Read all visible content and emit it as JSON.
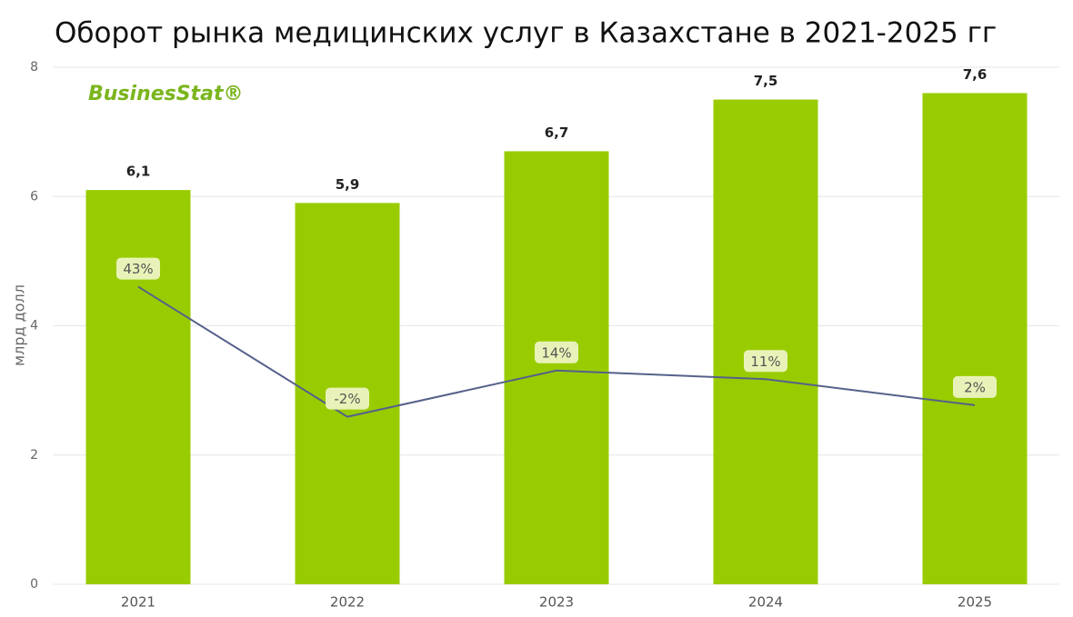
{
  "chart_data": {
    "type": "bar",
    "title": "Оборот рынка медицинских услуг в Казахстане в 2021-2025 гг",
    "logo": "BusinesStat®",
    "y_label": "млрд долл",
    "categories": [
      "2021",
      "2022",
      "2023",
      "2024",
      "2025"
    ],
    "series": [
      {
        "type": "bar",
        "color": "#99cc00",
        "values": [
          6.1,
          5.9,
          6.7,
          7.5,
          7.6
        ],
        "value_labels": [
          "6,1",
          "5,9",
          "6,7",
          "7,5",
          "7,6"
        ]
      },
      {
        "type": "line",
        "axis": "y2",
        "color": "#56618a",
        "values": [
          43,
          -2,
          14,
          11,
          2
        ],
        "value_labels": [
          "43%",
          "-2%",
          "14%",
          "11%",
          "2%"
        ]
      }
    ],
    "ylim": [
      0,
      8
    ],
    "yticks": [
      0,
      2,
      4,
      6,
      8
    ],
    "y2lim": [
      -60,
      119
    ],
    "grid": true
  }
}
